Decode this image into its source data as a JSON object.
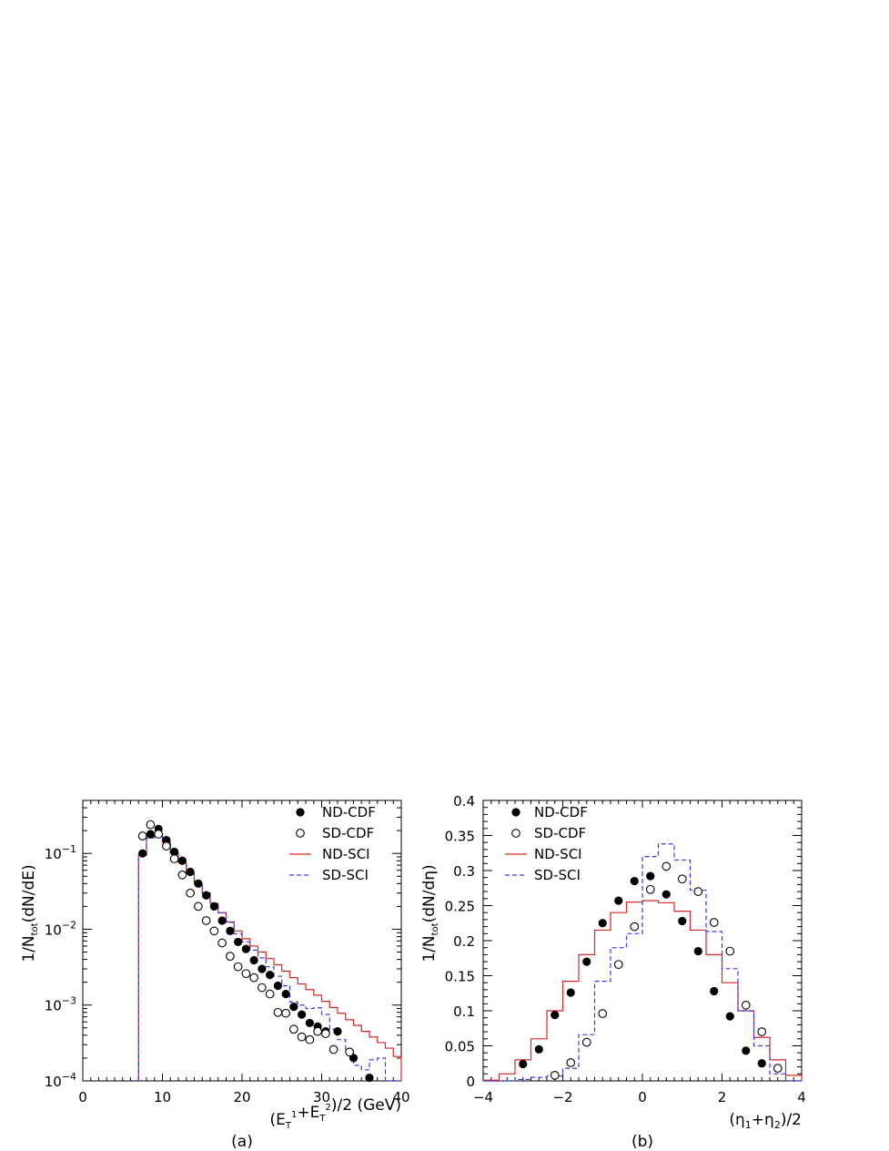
{
  "chart_data": [
    {
      "type": "scatter",
      "panel_label": "(a)",
      "xlabel": "(E_T^1+E_T^2)/2 (GeV)",
      "ylabel": "1/N_tot(dN/dE)",
      "xlim": [
        0,
        40
      ],
      "ylim": [
        0.0001,
        0.5
      ],
      "yscale": "log",
      "x_ticks": [
        "0",
        "10",
        "20",
        "30",
        "40"
      ],
      "y_ticks": [
        {
          "base": "10",
          "exp": "-1"
        },
        {
          "base": "10",
          "exp": "-2"
        },
        {
          "base": "10",
          "exp": "-3"
        },
        {
          "base": "10",
          "exp": "-4"
        }
      ],
      "legend": [
        {
          "label": "ND-CDF",
          "style": "filled-circle"
        },
        {
          "label": "SD-CDF",
          "style": "open-circle"
        },
        {
          "label": "ND-SCI",
          "style": "solid-line",
          "color": "#d62728"
        },
        {
          "label": "SD-SCI",
          "style": "dashed-line",
          "color": "#3a3af0"
        }
      ],
      "series": [
        {
          "name": "ND-CDF",
          "marker": "filled",
          "x": [
            7.5,
            8.5,
            9.5,
            10.5,
            11.5,
            12.5,
            13.5,
            14.5,
            15.5,
            16.5,
            17.5,
            18.5,
            19.5,
            20.5,
            21.5,
            22.5,
            23.5,
            24.5,
            25.5,
            26.5,
            27.5,
            28.5,
            29.5,
            30.5,
            32.0,
            34.0,
            36.0
          ],
          "y": [
            0.1,
            0.18,
            0.21,
            0.15,
            0.105,
            0.08,
            0.057,
            0.04,
            0.028,
            0.02,
            0.013,
            0.0095,
            0.0068,
            0.0055,
            0.0039,
            0.003,
            0.0025,
            0.0018,
            0.0014,
            0.00095,
            0.00075,
            0.00058,
            0.00052,
            0.00045,
            0.00045,
            0.0002,
            0.00011
          ]
        },
        {
          "name": "SD-CDF",
          "marker": "open",
          "x": [
            7.5,
            8.5,
            9.5,
            10.5,
            11.5,
            12.5,
            13.5,
            14.5,
            15.5,
            16.5,
            17.5,
            18.5,
            19.5,
            20.5,
            21.5,
            22.5,
            23.5,
            24.5,
            25.5,
            26.5,
            27.5,
            28.5,
            29.5,
            30.5,
            31.5,
            33.5
          ],
          "y": [
            0.17,
            0.24,
            0.18,
            0.125,
            0.085,
            0.052,
            0.03,
            0.02,
            0.013,
            0.0095,
            0.0066,
            0.0044,
            0.0032,
            0.0026,
            0.0023,
            0.0017,
            0.0014,
            0.0008,
            0.00078,
            0.00048,
            0.00038,
            0.00035,
            0.00045,
            0.00042,
            0.00026,
            0.00024
          ]
        },
        {
          "name": "ND-SCI",
          "step": true,
          "edges": [
            7,
            8,
            9,
            10,
            11,
            12,
            13,
            14,
            15,
            16,
            17,
            18,
            19,
            20,
            21,
            22,
            23,
            24,
            25,
            26,
            27,
            28,
            29,
            30,
            31,
            32,
            33,
            34,
            35,
            36,
            37,
            38,
            39,
            40
          ],
          "values": [
            0.095,
            0.16,
            0.18,
            0.14,
            0.1,
            0.075,
            0.055,
            0.04,
            0.03,
            0.022,
            0.0165,
            0.0125,
            0.0095,
            0.0075,
            0.006,
            0.005,
            0.0041,
            0.0034,
            0.0028,
            0.0023,
            0.0019,
            0.0016,
            0.00135,
            0.00112,
            0.00093,
            0.00078,
            0.00064,
            0.00054,
            0.00045,
            0.00038,
            0.00032,
            0.00027,
            0.00021
          ]
        },
        {
          "name": "SD-SCI",
          "step": true,
          "edges": [
            7,
            8,
            9,
            10,
            11,
            12,
            13,
            14,
            15,
            16,
            17,
            18,
            19,
            20,
            21,
            22,
            23,
            24,
            25,
            26,
            27,
            28,
            29,
            30,
            31,
            32,
            33,
            34,
            35,
            36,
            37,
            38,
            39,
            40
          ],
          "values": [
            0.095,
            0.16,
            0.17,
            0.14,
            0.1,
            0.075,
            0.055,
            0.04,
            0.03,
            0.022,
            0.0165,
            0.0123,
            0.0087,
            0.0068,
            0.0053,
            0.0042,
            0.0032,
            0.0024,
            0.0018,
            0.0011,
            0.001,
            0.0009,
            0.00092,
            0.00075,
            0.00048,
            0.00035,
            0.00024,
            0.00016,
            0.00014,
            0.00019,
            0.0002,
            9e-05,
            9e-05
          ]
        }
      ]
    },
    {
      "type": "scatter",
      "panel_label": "(b)",
      "xlabel": "(η1+η2)/2",
      "ylabel": "1/N_tot(dN/dη)",
      "xlim": [
        -4,
        4
      ],
      "ylim": [
        0,
        0.4
      ],
      "x_ticks": [
        "-4",
        "-2",
        "0",
        "2",
        "4"
      ],
      "y_ticks": [
        "0",
        "0.05",
        "0.1",
        "0.15",
        "0.2",
        "0.25",
        "0.3",
        "0.35",
        "0.4"
      ],
      "legend": [
        {
          "label": "ND-CDF",
          "style": "filled-circle"
        },
        {
          "label": "SD-CDF",
          "style": "open-circle"
        },
        {
          "label": "ND-SCI",
          "style": "solid-line",
          "color": "#d62728"
        },
        {
          "label": "SD-SCI",
          "style": "dashed-line",
          "color": "#3a3af0"
        }
      ],
      "series": [
        {
          "name": "ND-CDF",
          "marker": "filled",
          "x": [
            -3.0,
            -2.6,
            -2.2,
            -1.8,
            -1.4,
            -1.0,
            -0.6,
            -0.2,
            0.2,
            0.6,
            1.0,
            1.4,
            1.8,
            2.2,
            2.6,
            3.0
          ],
          "y": [
            0.024,
            0.045,
            0.094,
            0.126,
            0.17,
            0.225,
            0.257,
            0.285,
            0.292,
            0.266,
            0.228,
            0.185,
            0.128,
            0.092,
            0.043,
            0.025
          ]
        },
        {
          "name": "SD-CDF",
          "marker": "open",
          "x": [
            -2.2,
            -1.8,
            -1.4,
            -1.0,
            -0.6,
            -0.2,
            0.2,
            0.6,
            1.0,
            1.4,
            1.8,
            2.2,
            2.6,
            3.0,
            3.4
          ],
          "y": [
            0.008,
            0.026,
            0.055,
            0.096,
            0.166,
            0.22,
            0.273,
            0.306,
            0.288,
            0.27,
            0.226,
            0.185,
            0.108,
            0.07,
            0.018
          ]
        },
        {
          "name": "ND-SCI",
          "step": true,
          "edges": [
            -4,
            -3.6,
            -3.2,
            -2.8,
            -2.4,
            -2.0,
            -1.6,
            -1.2,
            -0.8,
            -0.4,
            0,
            0.4,
            0.8,
            1.2,
            1.6,
            2.0,
            2.4,
            2.8,
            3.2,
            3.6,
            4
          ],
          "values": [
            0.001,
            0.01,
            0.03,
            0.06,
            0.1,
            0.142,
            0.18,
            0.215,
            0.24,
            0.255,
            0.257,
            0.254,
            0.242,
            0.215,
            0.18,
            0.14,
            0.1,
            0.062,
            0.03,
            0.008
          ]
        },
        {
          "name": "SD-SCI",
          "step": true,
          "edges": [
            -4,
            -3.6,
            -3.2,
            -2.8,
            -2.4,
            -2.0,
            -1.6,
            -1.2,
            -0.8,
            -0.4,
            0,
            0.4,
            0.8,
            1.2,
            1.6,
            2.0,
            2.4,
            2.8,
            3.2,
            3.6,
            4
          ],
          "values": [
            0,
            0,
            0.002,
            0.005,
            0.007,
            0.018,
            0.066,
            0.142,
            0.19,
            0.21,
            0.32,
            0.338,
            0.315,
            0.272,
            0.213,
            0.16,
            0.1,
            0.05,
            0.01,
            0
          ]
        }
      ]
    }
  ]
}
